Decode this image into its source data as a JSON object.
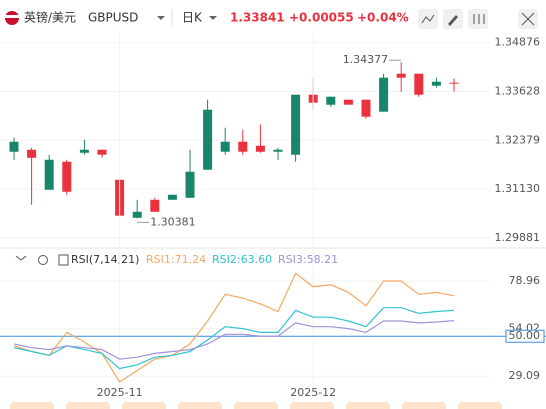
{
  "header": {
    "pair": "英镑/美元",
    "symbol": "GBPUSD",
    "period": "日K",
    "price": "1.33841",
    "change": "+0.00055",
    "change_pct": "+0.04%"
  },
  "chart_data": [
    {
      "type": "candlestick",
      "open": [
        1.32086,
        1.32137,
        1.31113,
        1.3183,
        1.3206,
        1.32137,
        1.31369,
        1.30396,
        1.30857,
        1.30857,
        1.30908,
        1.31625,
        1.32086,
        1.32342,
        1.32239,
        1.32086,
        1.32009,
        1.33545,
        1.33289,
        1.33417,
        1.33417,
        1.3311,
        1.34082,
        1.34082,
        1.33775,
        1.33852
      ],
      "high": [
        1.32444,
        1.32188,
        1.32009,
        1.31881,
        1.32393,
        1.32137,
        1.3142,
        1.30857,
        1.30908,
        1.30985,
        1.32137,
        1.33417,
        1.327,
        1.32649,
        1.32777,
        1.32188,
        1.33545,
        1.3398,
        1.33494,
        1.33417,
        1.33417,
        1.34082,
        1.34377,
        1.34082,
        1.3398,
        1.33955
      ],
      "low": [
        1.31881,
        1.30729,
        1.31113,
        1.30985,
        1.32009,
        1.31932,
        1.3042,
        1.30381,
        1.3055,
        1.30857,
        1.30908,
        1.31625,
        1.32009,
        1.32009,
        1.3206,
        1.31881,
        1.3183,
        1.33161,
        1.33238,
        1.33289,
        1.3293,
        1.3311,
        1.33622,
        1.33494,
        1.33724,
        1.33622
      ],
      "close": [
        1.32342,
        1.31932,
        1.31881,
        1.31062,
        1.32137,
        1.32009,
        1.3045,
        1.3055,
        1.3055,
        1.30985,
        1.31574,
        1.33161,
        1.32342,
        1.32086,
        1.32086,
        1.32137,
        1.33545,
        1.3334,
        1.33494,
        1.33289,
        1.32982,
        1.3398,
        1.3398,
        1.33545,
        1.33878,
        1.33841
      ],
      "up_color": "#17866a",
      "down_color": "#e9323d",
      "ylim": [
        1.297,
        1.352
      ],
      "yticks": [
        1.34876,
        1.33628,
        1.32379,
        {
          "value": 1.3113,
          "label": "1.31130"
        },
        1.29881
      ],
      "annotations": [
        {
          "index": 22,
          "label": "1.34377"
        },
        {
          "index": 7,
          "label": "1.30381"
        }
      ]
    },
    {
      "type": "line",
      "title": "RSI(7,14,21)",
      "categories": [
        null,
        null,
        null,
        null,
        null,
        null,
        "2025-11",
        null,
        null,
        null,
        null,
        null,
        null,
        null,
        null,
        null,
        null,
        "2025-12",
        null,
        null,
        null,
        null,
        null,
        null,
        null,
        null
      ],
      "series": [
        {
          "name": "RSI1:71.24",
          "color": "#f5a860",
          "values": [
            45,
            42,
            40,
            52,
            47,
            41,
            26,
            32,
            38,
            40,
            46,
            58,
            72,
            70,
            67,
            63,
            83,
            76,
            77,
            73,
            66,
            79,
            79,
            72,
            73,
            71.24
          ]
        },
        {
          "name": "RSI2:63.60",
          "color": "#2fc3d4",
          "values": [
            44,
            42,
            40,
            45,
            43,
            41,
            33,
            35,
            39,
            40,
            42,
            48,
            55,
            54,
            52,
            52,
            63.5,
            60,
            60,
            58,
            55,
            65,
            65,
            62,
            63,
            63.6
          ]
        },
        {
          "name": "RSI3:58.21",
          "color": "#a193d8",
          "values": [
            46,
            44,
            43,
            45,
            44,
            43,
            38,
            39,
            41,
            42,
            43,
            46,
            51,
            51,
            50,
            50,
            57,
            55,
            55,
            54,
            52,
            58,
            58,
            57,
            57.5,
            58.21
          ]
        }
      ],
      "ylim": [
        24.4,
        87.4
      ],
      "yticks": [
        78.96,
        54.02,
        29.09
      ],
      "level": {
        "value": 50,
        "label": "50.00",
        "color": "#3d8fd8"
      }
    }
  ]
}
